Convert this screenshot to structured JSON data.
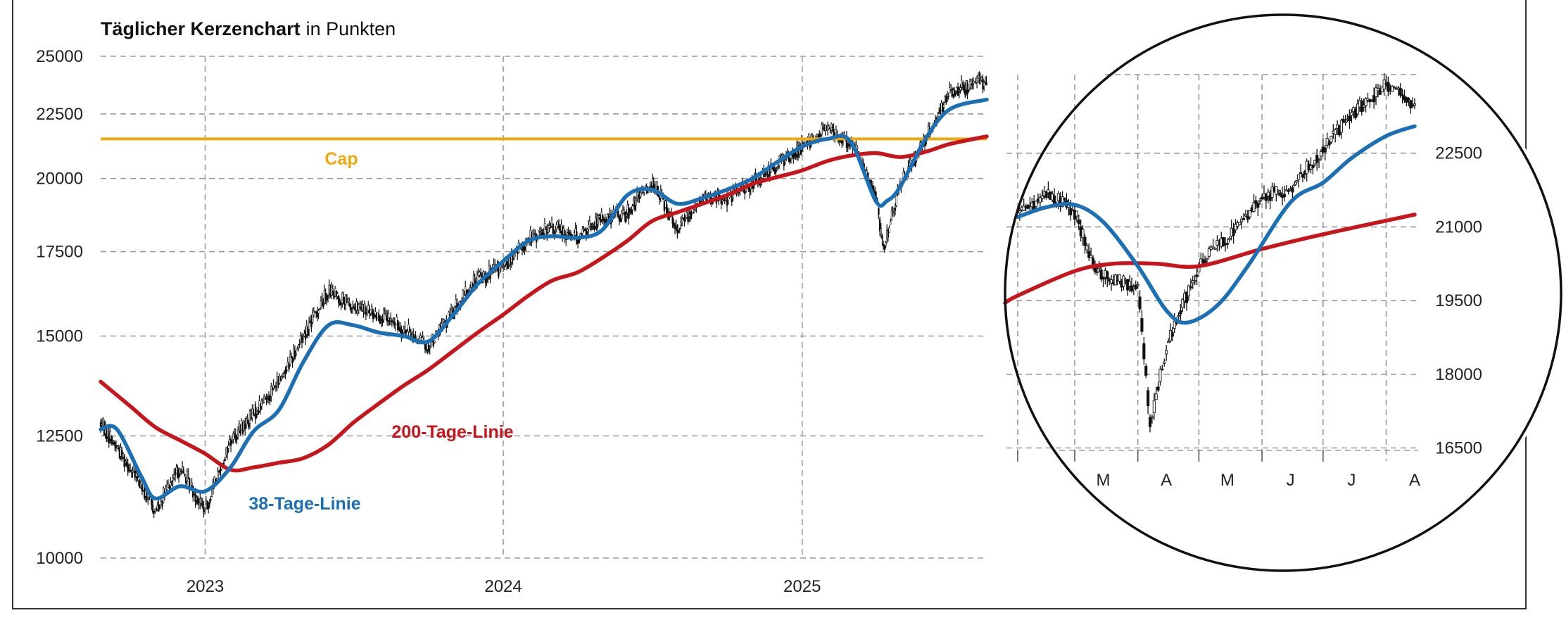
{
  "colors": {
    "cap": "#f0a80d",
    "ma38": "#1b6fb4",
    "ma200": "#c8151b",
    "candles": "#111111",
    "grid": "#9a9a9a",
    "frame": "#333333"
  },
  "chart_data": [
    {
      "type": "line",
      "subtype": "candlestick",
      "title": "Täglicher Kerzenchart",
      "subtitle": "in Punkten",
      "yaxis": {
        "ticks": [
          10000,
          12500,
          15000,
          17500,
          20000,
          22500,
          25000
        ],
        "tick_labels": [
          "10000",
          "12500",
          "15000",
          "17500",
          "20000",
          "22500",
          "25000"
        ],
        "scale": "log",
        "ylim": [
          10000,
          25000
        ]
      },
      "xaxis": {
        "ticks": [
          "2023-01-01",
          "2024-01-01",
          "2025-01-01"
        ],
        "tick_labels": [
          "2023",
          "2024",
          "2025"
        ],
        "xlim": [
          "2022-08-26",
          "2025-08-15"
        ]
      },
      "grid": true,
      "annotations": [
        {
          "text": "Cap",
          "color": "cap",
          "value": 21500
        },
        {
          "text": "200-Tage-Linie",
          "color": "ma200"
        },
        {
          "text": "38-Tage-Linie",
          "color": "ma38"
        }
      ],
      "series": [
        {
          "name": "Kurs",
          "style": "candles",
          "x": [
            "2022-08-26",
            "2022-10-01",
            "2022-11-01",
            "2022-12-01",
            "2023-01-01",
            "2023-02-01",
            "2023-03-01",
            "2023-04-01",
            "2023-05-01",
            "2023-06-01",
            "2023-07-01",
            "2023-08-01",
            "2023-09-01",
            "2023-10-01",
            "2023-11-01",
            "2023-12-01",
            "2024-01-01",
            "2024-02-01",
            "2024-03-01",
            "2024-04-01",
            "2024-05-01",
            "2024-06-01",
            "2024-07-01",
            "2024-08-01",
            "2024-09-01",
            "2024-10-01",
            "2024-11-01",
            "2024-12-01",
            "2025-01-01",
            "2025-02-01",
            "2025-03-01",
            "2025-04-01",
            "2025-04-10",
            "2025-05-01",
            "2025-06-01",
            "2025-07-01",
            "2025-08-15"
          ],
          "values": [
            12800,
            11800,
            10900,
            11800,
            10900,
            12400,
            13000,
            13800,
            15000,
            16300,
            15800,
            15600,
            15200,
            14700,
            15700,
            16700,
            17000,
            17900,
            18300,
            18000,
            18600,
            18800,
            19900,
            18300,
            19300,
            19300,
            19800,
            20500,
            21200,
            21900,
            21400,
            19500,
            17500,
            19700,
            21500,
            23500,
            23900
          ]
        },
        {
          "name": "38-Tage-Linie",
          "color": "ma38",
          "x": [
            "2022-08-26",
            "2022-09-15",
            "2022-10-15",
            "2022-11-01",
            "2022-12-01",
            "2023-01-01",
            "2023-02-01",
            "2023-03-01",
            "2023-04-01",
            "2023-05-01",
            "2023-06-01",
            "2023-07-01",
            "2023-08-01",
            "2023-09-01",
            "2023-10-01",
            "2023-11-01",
            "2023-12-01",
            "2024-01-01",
            "2024-02-01",
            "2024-03-01",
            "2024-04-01",
            "2024-05-01",
            "2024-06-01",
            "2024-07-01",
            "2024-08-01",
            "2024-09-01",
            "2024-10-01",
            "2024-11-01",
            "2024-12-01",
            "2025-01-01",
            "2025-02-01",
            "2025-03-01",
            "2025-04-01",
            "2025-04-15",
            "2025-05-01",
            "2025-06-01",
            "2025-07-01",
            "2025-08-15"
          ],
          "values": [
            12650,
            12650,
            11600,
            11150,
            11400,
            11300,
            11800,
            12600,
            13100,
            14300,
            15300,
            15300,
            15100,
            15000,
            14850,
            15600,
            16500,
            17200,
            17850,
            18000,
            17950,
            18200,
            19400,
            19600,
            19100,
            19300,
            19600,
            20000,
            20600,
            21200,
            21500,
            21400,
            19200,
            19200,
            19700,
            21500,
            22700,
            23100
          ]
        },
        {
          "name": "200-Tage-Linie",
          "color": "ma200",
          "x": [
            "2022-08-26",
            "2022-10-01",
            "2022-11-01",
            "2022-12-01",
            "2023-01-01",
            "2023-02-01",
            "2023-03-01",
            "2023-04-01",
            "2023-05-01",
            "2023-06-01",
            "2023-07-01",
            "2023-08-01",
            "2023-09-01",
            "2023-10-01",
            "2023-11-01",
            "2023-12-01",
            "2024-01-01",
            "2024-02-01",
            "2024-03-01",
            "2024-04-01",
            "2024-05-01",
            "2024-06-01",
            "2024-07-01",
            "2024-08-01",
            "2024-09-01",
            "2024-10-01",
            "2024-11-01",
            "2024-12-01",
            "2025-01-01",
            "2025-02-01",
            "2025-03-01",
            "2025-04-01",
            "2025-05-01",
            "2025-06-01",
            "2025-07-01",
            "2025-08-15"
          ],
          "values": [
            13800,
            13200,
            12700,
            12400,
            12100,
            11750,
            11800,
            11900,
            12000,
            12300,
            12800,
            13250,
            13700,
            14100,
            14600,
            15100,
            15600,
            16150,
            16600,
            16850,
            17300,
            17850,
            18500,
            18800,
            19100,
            19400,
            19800,
            20050,
            20300,
            20650,
            20850,
            20950,
            20800,
            21000,
            21300,
            21600
          ]
        }
      ]
    },
    {
      "type": "line",
      "subtype": "candlestick",
      "yaxis": {
        "ticks": [
          16500,
          18000,
          19500,
          21000,
          22500
        ],
        "tick_labels": [
          "16500",
          "18000",
          "19500",
          "21000",
          "22500"
        ],
        "ylim": [
          16450,
          24100
        ]
      },
      "xaxis": {
        "tick_labels": [
          "M",
          "A",
          "M",
          "J",
          "J",
          "A"
        ],
        "xlim": [
          "2025-02-01",
          "2025-08-15"
        ]
      },
      "grid": true,
      "series": [
        {
          "name": "Kurs",
          "style": "candles",
          "x": [
            "2025-02-01",
            "2025-02-15",
            "2025-03-01",
            "2025-03-10",
            "2025-03-20",
            "2025-04-01",
            "2025-04-07",
            "2025-04-15",
            "2025-04-25",
            "2025-05-01",
            "2025-05-15",
            "2025-06-01",
            "2025-06-15",
            "2025-07-01",
            "2025-07-15",
            "2025-08-01",
            "2025-08-15"
          ],
          "values": [
            21200,
            21700,
            21300,
            20200,
            19900,
            19800,
            17000,
            18600,
            19600,
            20200,
            20800,
            21600,
            21800,
            22600,
            23300,
            23900,
            23500
          ]
        },
        {
          "name": "38-Tage-Linie",
          "color": "ma38",
          "x": [
            "2025-02-01",
            "2025-02-15",
            "2025-03-01",
            "2025-03-15",
            "2025-04-01",
            "2025-04-15",
            "2025-04-25",
            "2025-05-10",
            "2025-05-25",
            "2025-06-15",
            "2025-07-01",
            "2025-07-15",
            "2025-08-01",
            "2025-08-15"
          ],
          "values": [
            21200,
            21400,
            21450,
            21100,
            20200,
            19300,
            19050,
            19400,
            20200,
            21500,
            21900,
            22400,
            22850,
            23050
          ]
        },
        {
          "name": "200-Tage-Linie",
          "color": "ma200",
          "x": [
            "2025-02-01",
            "2025-03-01",
            "2025-03-20",
            "2025-04-10",
            "2025-05-01",
            "2025-06-01",
            "2025-07-01",
            "2025-08-15"
          ],
          "values": [
            19600,
            20100,
            20250,
            20250,
            20200,
            20550,
            20850,
            21250
          ]
        }
      ]
    }
  ]
}
